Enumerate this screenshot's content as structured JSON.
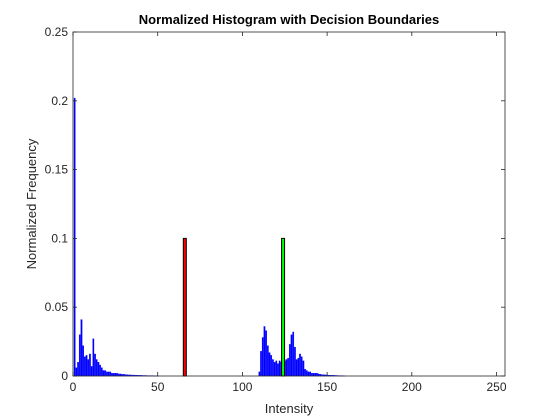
{
  "chart_data": {
    "type": "bar",
    "title": "Normalized Histogram with Decision Boundaries",
    "xlabel": "Intensity",
    "ylabel": "Normalized Frequency",
    "xlim": [
      0,
      255
    ],
    "ylim": [
      0,
      0.25
    ],
    "xticks": [
      0,
      50,
      100,
      150,
      200,
      250
    ],
    "xtick_labels": [
      "0",
      "50",
      "100",
      "150",
      "200",
      "250"
    ],
    "yticks": [
      0,
      0.05,
      0.1,
      0.15,
      0.2,
      0.25
    ],
    "ytick_labels": [
      "0",
      "0.05",
      "0.1",
      "0.15",
      "0.2",
      "0.25"
    ],
    "grid": false,
    "histogram": {
      "name": "histogram",
      "color": "#0000ff",
      "x": [
        1,
        2,
        3,
        4,
        5,
        6,
        7,
        8,
        9,
        10,
        11,
        12,
        13,
        14,
        15,
        16,
        17,
        18,
        19,
        20,
        21,
        22,
        23,
        24,
        25,
        26,
        27,
        28,
        29,
        30,
        31,
        32,
        33,
        34,
        35,
        36,
        37,
        38,
        39,
        40,
        41,
        42,
        43,
        44,
        45,
        46,
        47,
        48,
        49,
        50,
        110,
        111,
        112,
        113,
        114,
        115,
        116,
        117,
        118,
        119,
        120,
        121,
        122,
        123,
        124,
        125,
        126,
        127,
        128,
        129,
        130,
        131,
        132,
        133,
        134,
        135,
        136,
        137,
        138,
        139,
        140,
        141,
        142,
        143,
        144,
        145,
        146,
        147,
        148,
        149,
        150,
        151,
        152,
        153,
        154,
        155,
        156,
        157,
        158,
        159,
        160
      ],
      "values": [
        0.202,
        0.006,
        0.01,
        0.03,
        0.041,
        0.022,
        0.014,
        0.015,
        0.012,
        0.016,
        0.007,
        0.027,
        0.016,
        0.012,
        0.01,
        0.008,
        0.006,
        0.004,
        0.004,
        0.003,
        0.003,
        0.003,
        0.002,
        0.002,
        0.002,
        0.002,
        0.0015,
        0.0015,
        0.0012,
        0.0012,
        0.001,
        0.001,
        0.0008,
        0.0008,
        0.0007,
        0.0007,
        0.0006,
        0.0006,
        0.0005,
        0.0005,
        0.0004,
        0.0004,
        0.0004,
        0.0003,
        0.0003,
        0.0003,
        0.0003,
        0.0002,
        0.0002,
        0.0002,
        0.003,
        0.018,
        0.028,
        0.036,
        0.033,
        0.022,
        0.017,
        0.015,
        0.012,
        0.01,
        0.011,
        0.009,
        0.011,
        0.01,
        0.01,
        0.011,
        0.012,
        0.013,
        0.023,
        0.03,
        0.032,
        0.021,
        0.012,
        0.013,
        0.016,
        0.014,
        0.011,
        0.005,
        0.004,
        0.003,
        0.003,
        0.002,
        0.002,
        0.002,
        0.002,
        0.0015,
        0.0012,
        0.001,
        0.001,
        0.0008,
        0.0008,
        0.0006,
        0.0006,
        0.0005,
        0.0005,
        0.0004,
        0.0004,
        0.0003,
        0.0003,
        0.0003,
        0.0002
      ]
    },
    "decision_boundaries": [
      {
        "x": 66,
        "value": 0.1,
        "color": "#ff0000"
      },
      {
        "x": 124,
        "value": 0.1,
        "color": "#00ff00"
      }
    ]
  }
}
